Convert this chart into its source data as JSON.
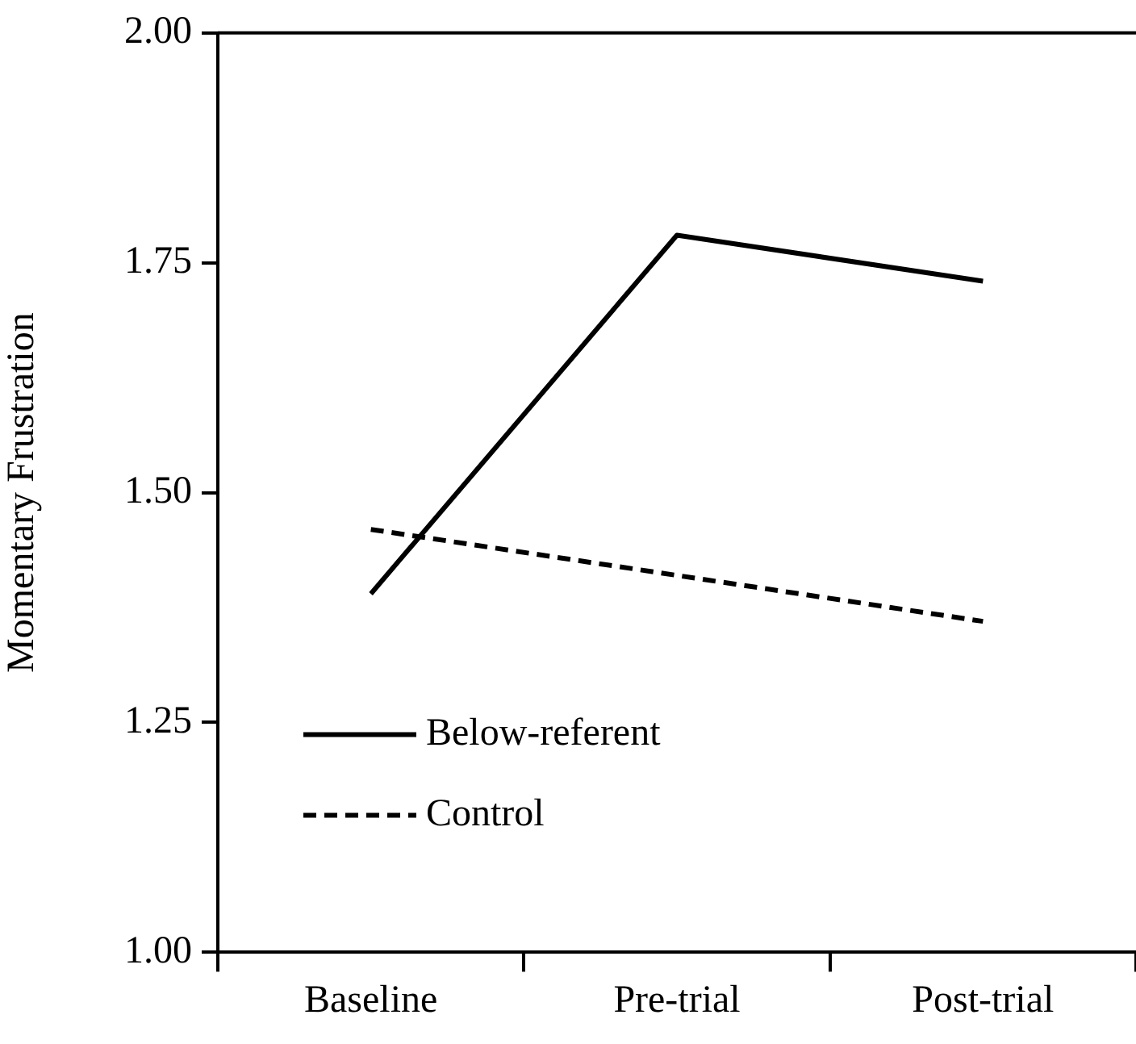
{
  "chart_data": {
    "type": "line",
    "ylabel": "Momentary Frustration",
    "categories": [
      "Baseline",
      "Pre-trial",
      "Post-trial"
    ],
    "ylim": [
      1,
      2
    ],
    "yticks": [
      {
        "value": 1,
        "label": "1.00"
      },
      {
        "value": 1.25,
        "label": "1.25"
      },
      {
        "value": 1.5,
        "label": "1.50"
      },
      {
        "value": 1.75,
        "label": "1.75"
      },
      {
        "value": 2,
        "label": "2.00"
      }
    ],
    "grid": false,
    "legend": "bottom left",
    "marker": "none",
    "series": [
      {
        "name": "Below-referent",
        "color": "#000000",
        "line_style": "solid",
        "values": [
          1.39,
          1.78,
          1.73
        ]
      },
      {
        "name": "Control",
        "color": "#000000",
        "line_style": "dashed",
        "values": [
          1.46,
          1.41,
          1.36
        ]
      }
    ]
  }
}
